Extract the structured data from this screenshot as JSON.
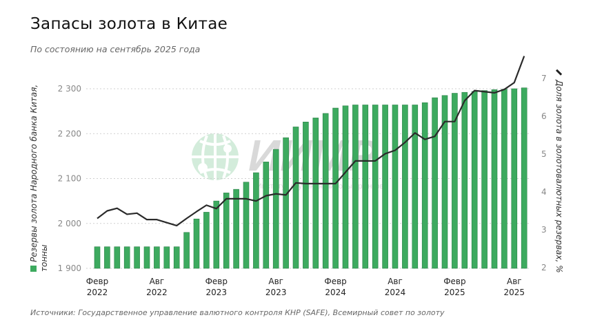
{
  "title": "Запасы золота в Китае",
  "subtitle": "По состоянию на сентябрь 2025 года",
  "source": "Источники: Государственное управление валютного контроля КНР (SAFE), Всемирный совет по золоту",
  "watermark": {
    "logo": "ИИМР",
    "text": "Институт изучения мировых рынков"
  },
  "colors": {
    "bar": "#3daa5f",
    "bar_border": "#2b8048",
    "line": "#2a2a2a",
    "grid": "#cfcfcf"
  },
  "chart_data": {
    "type": "bar+line",
    "title": "Запасы золота в Китае",
    "ylabel_left": "Резервы золота Народного банка Китая, тонны",
    "ylabel_right": "Доля золота в золотовалютных резервах, %",
    "ylim_left": [
      1900,
      2300
    ],
    "yticks_left": [
      "1 900",
      "2 000",
      "2 100",
      "2 200",
      "2 300"
    ],
    "ylim_right": [
      2,
      7
    ],
    "yticks_right": [
      "2",
      "3",
      "4",
      "5",
      "6",
      "7"
    ],
    "grid": true,
    "x_tick_labels": [
      {
        "index": 0,
        "month": "Февр",
        "year": "2022"
      },
      {
        "index": 6,
        "month": "Авг",
        "year": "2022"
      },
      {
        "index": 12,
        "month": "Февр",
        "year": "2023"
      },
      {
        "index": 18,
        "month": "Авг",
        "year": "2023"
      },
      {
        "index": 24,
        "month": "Февр",
        "year": "2024"
      },
      {
        "index": 30,
        "month": "Авг",
        "year": "2024"
      },
      {
        "index": 36,
        "month": "Февр",
        "year": "2025"
      },
      {
        "index": 42,
        "month": "Авг",
        "year": "2025"
      }
    ],
    "categories": [
      "2022-02",
      "2022-03",
      "2022-04",
      "2022-05",
      "2022-06",
      "2022-07",
      "2022-08",
      "2022-09",
      "2022-10",
      "2022-11",
      "2022-12",
      "2023-01",
      "2023-02",
      "2023-03",
      "2023-04",
      "2023-05",
      "2023-06",
      "2023-07",
      "2023-08",
      "2023-09",
      "2023-10",
      "2023-11",
      "2023-12",
      "2024-01",
      "2024-02",
      "2024-03",
      "2024-04",
      "2024-05",
      "2024-06",
      "2024-07",
      "2024-08",
      "2024-09",
      "2024-10",
      "2024-11",
      "2024-12",
      "2025-01",
      "2025-02",
      "2025-03",
      "2025-04",
      "2025-05",
      "2025-06",
      "2025-07",
      "2025-08",
      "2025-09"
    ],
    "series": [
      {
        "name": "Резервы золота Народного банка Китая, тонны",
        "type": "bar",
        "axis": "left",
        "values": [
          1948,
          1948,
          1948,
          1948,
          1948,
          1948,
          1948,
          1948,
          1948,
          1980,
          2010,
          2025,
          2050,
          2068,
          2076,
          2092,
          2113,
          2137,
          2165,
          2191,
          2215,
          2226,
          2235,
          2245,
          2257,
          2262,
          2264,
          2264,
          2264,
          2264,
          2264,
          2264,
          2264,
          2269,
          2280,
          2285,
          2290,
          2292,
          2294,
          2296,
          2298,
          2299,
          2300,
          2302
        ]
      },
      {
        "name": "Доля золота в золотовалютных резервах, %",
        "type": "line",
        "axis": "right",
        "values": [
          3.3,
          3.5,
          3.57,
          3.41,
          3.44,
          3.27,
          3.27,
          3.19,
          3.11,
          3.3,
          3.48,
          3.65,
          3.56,
          3.82,
          3.82,
          3.82,
          3.76,
          3.9,
          3.95,
          3.92,
          4.24,
          4.22,
          4.22,
          4.22,
          4.22,
          4.52,
          4.82,
          4.82,
          4.82,
          5.01,
          5.1,
          5.31,
          5.56,
          5.39,
          5.47,
          5.86,
          5.86,
          6.41,
          6.68,
          6.65,
          6.62,
          6.71,
          6.89,
          7.59
        ]
      }
    ]
  }
}
